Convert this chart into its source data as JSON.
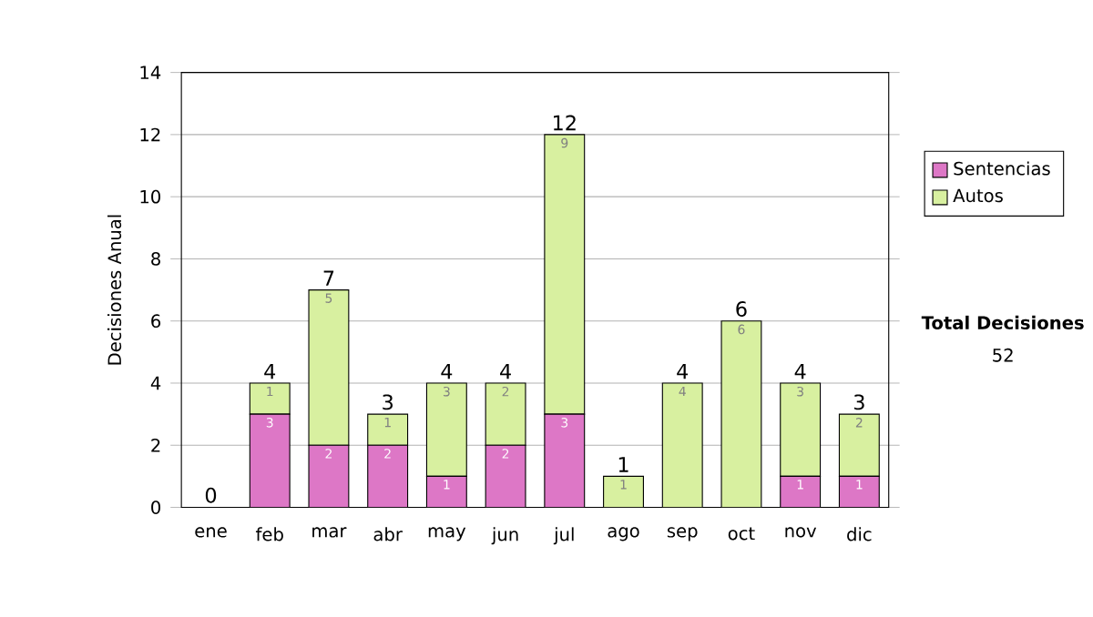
{
  "chart_data": {
    "type": "bar",
    "stacked": true,
    "ylabel": "Decisiones Anual",
    "categories": [
      "ene",
      "feb",
      "mar",
      "abr",
      "may",
      "jun",
      "jul",
      "ago",
      "sep",
      "oct",
      "nov",
      "dic"
    ],
    "series": [
      {
        "name": "Sentencias",
        "color": "#dd77c6",
        "values": [
          0,
          3,
          2,
          2,
          1,
          2,
          3,
          0,
          0,
          0,
          1,
          1
        ],
        "value_labels": [
          null,
          "3",
          "2",
          "2",
          "1",
          "2",
          "3",
          null,
          null,
          null,
          "1",
          "1"
        ]
      },
      {
        "name": "Autos",
        "color": "#d8f0a0",
        "values": [
          0,
          1,
          5,
          1,
          3,
          2,
          9,
          1,
          4,
          6,
          3,
          2
        ],
        "value_labels": [
          null,
          "1",
          "5",
          "1",
          "3",
          "2",
          "9",
          "1",
          "4",
          "6",
          "3",
          "2"
        ]
      }
    ],
    "totals": [
      "0",
      "4",
      "7",
      "3",
      "4",
      "4",
      "12",
      "1",
      "4",
      "6",
      "4",
      "3"
    ],
    "ylim": [
      0,
      14
    ],
    "yticks": [
      0,
      2,
      4,
      6,
      8,
      10,
      12,
      14
    ],
    "grid": "y",
    "legend": "right",
    "annotations": [
      "Total Decisiones",
      "52"
    ]
  }
}
